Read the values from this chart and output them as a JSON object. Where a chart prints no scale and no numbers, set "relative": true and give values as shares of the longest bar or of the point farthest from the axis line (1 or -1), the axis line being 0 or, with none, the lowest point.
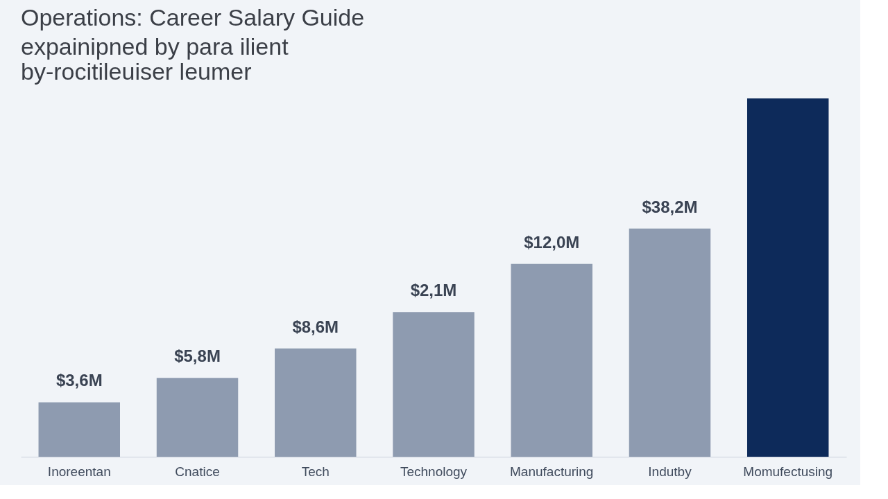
{
  "chart_data": {
    "type": "bar",
    "title": "Operations: Career Salary Guide",
    "subtitle": "expainipned by para ilient\nby-rocitileuiser leumer",
    "categories": [
      "Inoreentan",
      "Cnatice",
      "Tech",
      "Technology",
      "Manufacturing",
      "Indutby",
      "Momufectusing"
    ],
    "values": [
      0.152,
      0.22,
      0.302,
      0.404,
      0.538,
      0.637,
      1
    ],
    "colors": [
      "#8e9bb0",
      "#8e9bb0",
      "#8e9bb0",
      "#8e9bb0",
      "#8e9bb0",
      "#8e9bb0",
      "#0d2a5a"
    ],
    "annotations": [
      {
        "text": "$3,6M",
        "x": "Inoreentan",
        "y": 0.152
      },
      {
        "text": "$5,8M",
        "x": "Cnatice",
        "y": 0.22
      },
      {
        "text": "$8,6M",
        "x": "Tech",
        "y": 0.302
      },
      {
        "text": "$2,1M",
        "x": "Technology",
        "y": 0.404
      },
      {
        "text": "$12,0M",
        "x": "Manufacturing",
        "y": 0.538
      },
      {
        "text": "$38,2M",
        "x": "Indutby",
        "y": 0.637
      }
    ],
    "relative": true,
    "grid": false
  }
}
